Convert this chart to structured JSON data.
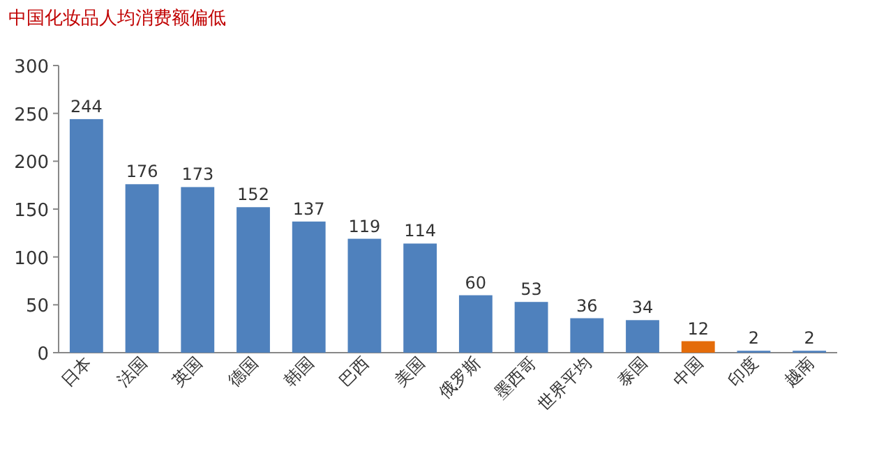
{
  "chart_data": {
    "type": "bar",
    "title": "中国化妆品人均消费额偏低",
    "categories": [
      "日本",
      "法国",
      "英国",
      "德国",
      "韩国",
      "巴西",
      "美国",
      "俄罗斯",
      "墨西哥",
      "世界平均",
      "泰国",
      "中国",
      "印度",
      "越南"
    ],
    "values": [
      244,
      176,
      173,
      152,
      137,
      119,
      114,
      60,
      53,
      36,
      34,
      12,
      2,
      2
    ],
    "colors": [
      "#4f81bd",
      "#4f81bd",
      "#4f81bd",
      "#4f81bd",
      "#4f81bd",
      "#4f81bd",
      "#4f81bd",
      "#4f81bd",
      "#4f81bd",
      "#4f81bd",
      "#4f81bd",
      "#e46c0a",
      "#4f81bd",
      "#4f81bd"
    ],
    "ylim": [
      0,
      300
    ],
    "yticks": [
      0,
      50,
      100,
      150,
      200,
      250,
      300
    ],
    "data_labels": true,
    "grid": false
  }
}
